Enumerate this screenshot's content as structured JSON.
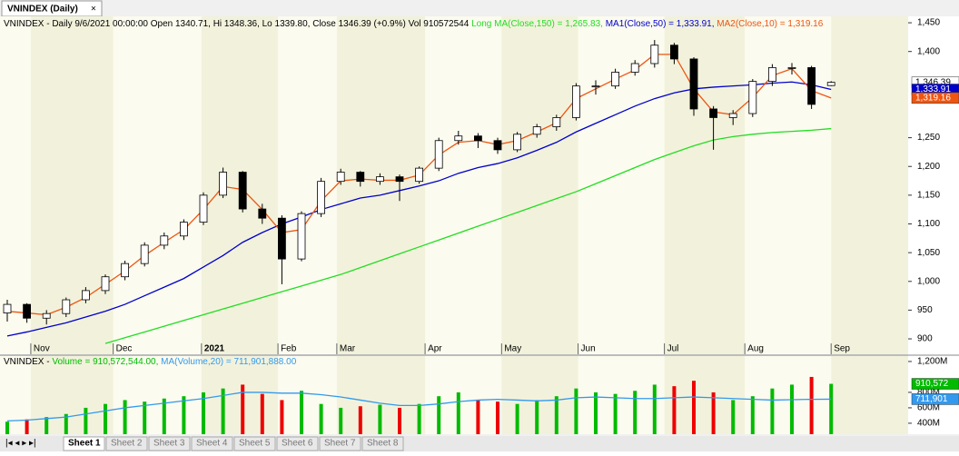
{
  "window": {
    "tab": "VNINDEX (Daily)",
    "sheets": [
      "Sheet 1",
      "Sheet 2",
      "Sheet 3",
      "Sheet 4",
      "Sheet 5",
      "Sheet 6",
      "Sheet 7",
      "Sheet 8"
    ]
  },
  "chart_data": [
    {
      "type": "candlestick",
      "title": "VNINDEX - Daily 9/6/2021 00:00:00 Open 1340.71, Hi 1348.36, Lo 1339.80, Close 1346.39 (+0.9%) Vol 910572544",
      "close_label": "1,346.39",
      "open": [
        945,
        960,
        936,
        944,
        968,
        984,
        1008,
        1031,
        1063,
        1079,
        1103,
        1150,
        1190,
        1126,
        1110,
        1039,
        1118,
        1174,
        1190,
        1174,
        1182,
        1174,
        1197,
        1245,
        1253,
        1245,
        1229,
        1256,
        1269,
        1285,
        1340,
        1340,
        1364,
        1379,
        1411,
        1387,
        1300,
        1285,
        1292,
        1348,
        1372,
        1372,
        1340.71
      ],
      "high": [
        968,
        962,
        950,
        972,
        990,
        1012,
        1036,
        1068,
        1085,
        1108,
        1155,
        1198,
        1192,
        1135,
        1115,
        1122,
        1180,
        1196,
        1192,
        1188,
        1186,
        1200,
        1250,
        1262,
        1258,
        1250,
        1260,
        1274,
        1290,
        1345,
        1350,
        1370,
        1385,
        1420,
        1415,
        1390,
        1305,
        1298,
        1352,
        1378,
        1380,
        1375,
        1348.36
      ],
      "low": [
        930,
        928,
        925,
        938,
        962,
        978,
        1002,
        1026,
        1056,
        1072,
        1098,
        1145,
        1120,
        1100,
        995,
        1035,
        1112,
        1168,
        1165,
        1168,
        1140,
        1170,
        1192,
        1238,
        1232,
        1222,
        1225,
        1250,
        1262,
        1280,
        1325,
        1335,
        1358,
        1372,
        1378,
        1288,
        1229,
        1272,
        1286,
        1340,
        1360,
        1300,
        1339.8
      ],
      "close": [
        960,
        936,
        944,
        968,
        984,
        1008,
        1031,
        1063,
        1079,
        1103,
        1150,
        1190,
        1126,
        1110,
        1039,
        1118,
        1174,
        1190,
        1174,
        1182,
        1174,
        1197,
        1245,
        1253,
        1245,
        1229,
        1256,
        1269,
        1285,
        1340,
        1340,
        1364,
        1379,
        1411,
        1387,
        1300,
        1285,
        1292,
        1348,
        1372,
        1372,
        1308,
        1346.39
      ],
      "up_color": "#ffffff",
      "down_color": "#000000",
      "series": [
        {
          "name": "Long MA(Close,150) = 1,265.83,",
          "color": "#22dd22",
          "values": [
            null,
            null,
            null,
            null,
            null,
            892,
            902,
            912,
            922,
            932,
            942,
            952,
            962,
            972,
            982,
            992,
            1002,
            1012,
            1024,
            1036,
            1048,
            1060,
            1072,
            1084,
            1096,
            1108,
            1120,
            1132,
            1144,
            1156,
            1170,
            1184,
            1198,
            1212,
            1224,
            1236,
            1246,
            1252,
            1256,
            1259,
            1261,
            1263,
            1265.83
          ]
        },
        {
          "name": "MA1(Close,50) = 1,333.91,",
          "color": "#0000cc",
          "axis_label": "1,333.91",
          "values": [
            905,
            912,
            920,
            928,
            938,
            948,
            960,
            975,
            990,
            1005,
            1025,
            1045,
            1068,
            1085,
            1100,
            1112,
            1125,
            1135,
            1145,
            1150,
            1158,
            1166,
            1175,
            1188,
            1198,
            1205,
            1215,
            1228,
            1242,
            1260,
            1275,
            1290,
            1305,
            1318,
            1328,
            1335,
            1338,
            1340,
            1342,
            1345,
            1347,
            1342,
            1333.91
          ]
        },
        {
          "name": "MA2(Close,10) = 1,319.16",
          "color": "#ee5511",
          "axis_label": "1,319.16",
          "values": [
            948,
            945,
            942,
            955,
            972,
            995,
            1018,
            1045,
            1068,
            1090,
            1125,
            1165,
            1160,
            1125,
            1085,
            1090,
            1140,
            1175,
            1178,
            1176,
            1176,
            1185,
            1220,
            1242,
            1245,
            1238,
            1245,
            1260,
            1276,
            1318,
            1335,
            1352,
            1368,
            1395,
            1395,
            1335,
            1295,
            1290,
            1320,
            1358,
            1370,
            1332,
            1319.16
          ]
        }
      ],
      "ylim": [
        889,
        1458
      ],
      "yticks": [
        900,
        950,
        {
          "value": 1000,
          "label": "1,000"
        },
        {
          "value": 1050,
          "label": "1,050"
        },
        {
          "value": 1100,
          "label": "1,100"
        },
        {
          "value": 1150,
          "label": "1,150"
        },
        {
          "value": 1200,
          "label": "1,200"
        },
        {
          "value": 1250,
          "label": "1,250"
        },
        {
          "value": 1400,
          "label": "1,400"
        },
        {
          "value": 1450,
          "label": "1,450"
        }
      ],
      "xticks": [
        {
          "value": 1.2,
          "label": "Nov"
        },
        {
          "value": 5.4,
          "label": "Dec"
        },
        {
          "value": 9.9,
          "label": "2021"
        },
        {
          "value": 13.8,
          "label": "Feb"
        },
        {
          "value": 16.8,
          "label": "Mar"
        },
        {
          "value": 21.3,
          "label": "Apr"
        },
        {
          "value": 25.2,
          "label": "May"
        },
        {
          "value": 29.1,
          "label": "Jun"
        },
        {
          "value": 33.5,
          "label": "Jul"
        },
        {
          "value": 37.6,
          "label": "Aug"
        },
        {
          "value": 42.0,
          "label": "Sep"
        }
      ]
    },
    {
      "type": "volume",
      "title": "VNINDEX -",
      "volume_name": "Volume = 910,572,544.00,",
      "volume_label": "910,572",
      "up_color": "#00bb00",
      "down_color": "#ee0000",
      "values": [
        420000000,
        450000000,
        480000000,
        520000000,
        600000000,
        650000000,
        700000000,
        680000000,
        720000000,
        750000000,
        800000000,
        850000000,
        900000000,
        780000000,
        700000000,
        820000000,
        650000000,
        600000000,
        620000000,
        640000000,
        600000000,
        650000000,
        750000000,
        800000000,
        700000000,
        680000000,
        650000000,
        700000000,
        750000000,
        850000000,
        800000000,
        780000000,
        820000000,
        900000000,
        880000000,
        950000000,
        800000000,
        700000000,
        750000000,
        850000000,
        900000000,
        1000000000,
        910572544
      ],
      "series": [
        {
          "name": "MA(Volume,20) = 711,901,888.00",
          "color": "#3399ee",
          "axis_label": "711,901",
          "values": [
            430000000,
            440000000,
            460000000,
            480000000,
            520000000,
            560000000,
            600000000,
            630000000,
            660000000,
            690000000,
            720000000,
            760000000,
            800000000,
            800000000,
            790000000,
            790000000,
            770000000,
            740000000,
            700000000,
            660000000,
            630000000,
            630000000,
            650000000,
            680000000,
            700000000,
            710000000,
            700000000,
            690000000,
            700000000,
            730000000,
            740000000,
            730000000,
            720000000,
            720000000,
            730000000,
            740000000,
            730000000,
            720000000,
            710000000,
            700000000,
            705000000,
            710000000,
            711901888
          ]
        }
      ],
      "ylim": [
        258000000,
        1270000000
      ],
      "yticks": [
        {
          "value": 400000000,
          "label": "400M"
        },
        {
          "value": 600000000,
          "label": "600M"
        },
        {
          "value": 800000000,
          "label": "800M"
        },
        {
          "value": 1200000000,
          "label": "1,200M"
        }
      ]
    }
  ]
}
